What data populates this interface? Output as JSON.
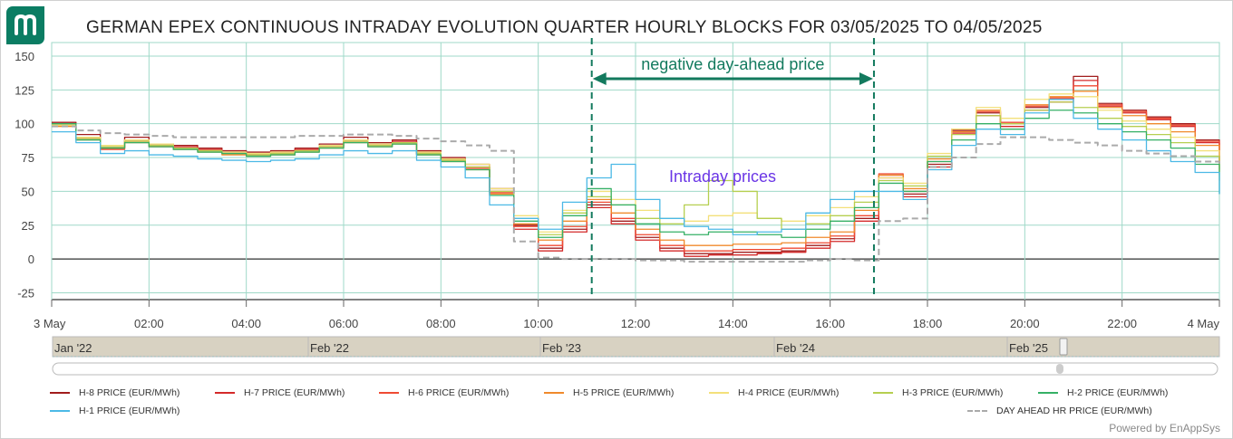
{
  "header": {
    "title": "GERMAN EPEX CONTINUOUS INTRADAY EVOLUTION QUARTER HOURLY BLOCKS FOR 03/05/2025 TO 04/05/2025",
    "logo_name": "enappsys-logo-icon",
    "powered_by": "Powered by EnAppSys"
  },
  "colors": {
    "H-8": "#a11c1c",
    "H-7": "#d42a2a",
    "H-6": "#ef4a33",
    "H-5": "#f08a2c",
    "H-4": "#f3e07a",
    "H-3": "#b6cf50",
    "H-2": "#35b065",
    "H-1": "#4cb9e6",
    "DA": "#aaaaaa",
    "annotation": "#137a5e",
    "annotation_text_purple": "#6a35e6",
    "grid": "#9fd9c8",
    "navigator_fill": "#d8d2c2"
  },
  "annotations": {
    "window_label": "negative day-ahead price",
    "window_start_hour": 11.1,
    "window_end_hour": 16.9,
    "intraday_label": "Intraday prices"
  },
  "navigator": {
    "labels": [
      "Jan '22",
      "Feb '22",
      "Feb '23",
      "Feb '24",
      "Feb '25"
    ]
  },
  "chart_data": {
    "type": "line",
    "title": "GERMAN EPEX CONTINUOUS INTRADAY EVOLUTION QUARTER HOURLY BLOCKS FOR 03/05/2025 TO 04/05/2025",
    "xlabel": "",
    "ylabel": "",
    "x_unit": "hours since 3 May 00:00",
    "xlim": [
      0,
      24
    ],
    "ylim": [
      -30,
      160
    ],
    "x_ticks": [
      {
        "x": 0,
        "label": "3 May"
      },
      {
        "x": 2,
        "label": "02:00"
      },
      {
        "x": 4,
        "label": "04:00"
      },
      {
        "x": 6,
        "label": "06:00"
      },
      {
        "x": 8,
        "label": "08:00"
      },
      {
        "x": 10,
        "label": "10:00"
      },
      {
        "x": 12,
        "label": "12:00"
      },
      {
        "x": 14,
        "label": "14:00"
      },
      {
        "x": 16,
        "label": "16:00"
      },
      {
        "x": 18,
        "label": "18:00"
      },
      {
        "x": 20,
        "label": "20:00"
      },
      {
        "x": 22,
        "label": "22:00"
      },
      {
        "x": 24,
        "label": "4 May"
      }
    ],
    "y_ticks": [
      150,
      125,
      100,
      75,
      50,
      25,
      0,
      -25
    ],
    "legend_position": "bottom",
    "x": [
      0,
      0.5,
      1,
      1.5,
      2,
      2.5,
      3,
      3.5,
      4,
      4.5,
      5,
      5.5,
      6,
      6.5,
      7,
      7.5,
      8,
      8.5,
      9,
      9.5,
      10,
      10.5,
      11,
      11.5,
      12,
      12.5,
      13,
      13.5,
      14,
      14.5,
      15,
      15.5,
      16,
      16.5,
      17,
      17.5,
      18,
      18.5,
      19,
      19.5,
      20,
      20.5,
      21,
      21.5,
      22,
      22.5,
      23,
      23.5,
      24
    ],
    "series": [
      {
        "name": "H-8 PRICE (EUR/MWh)",
        "key": "H-8",
        "values": [
          101,
          92,
          83,
          90,
          85,
          84,
          82,
          80,
          79,
          80,
          82,
          85,
          90,
          86,
          88,
          80,
          75,
          70,
          52,
          25,
          8,
          22,
          40,
          28,
          16,
          8,
          4,
          4,
          5,
          5,
          6,
          10,
          15,
          30,
          62,
          48,
          70,
          95,
          108,
          100,
          112,
          118,
          135,
          115,
          110,
          105,
          100,
          88,
          72
        ]
      },
      {
        "name": "H-7 PRICE (EUR/MWh)",
        "key": "H-7",
        "values": [
          100,
          90,
          82,
          88,
          84,
          83,
          81,
          79,
          78,
          79,
          81,
          84,
          88,
          85,
          87,
          79,
          74,
          68,
          50,
          22,
          6,
          20,
          38,
          26,
          14,
          6,
          2,
          3,
          3,
          4,
          5,
          8,
          13,
          28,
          60,
          46,
          68,
          93,
          106,
          98,
          110,
          116,
          132,
          113,
          108,
          103,
          98,
          86,
          70
        ]
      },
      {
        "name": "H-6 PRICE (EUR/MWh)",
        "key": "H-6",
        "values": [
          99,
          89,
          81,
          87,
          83,
          82,
          80,
          78,
          77,
          78,
          80,
          83,
          87,
          84,
          86,
          78,
          73,
          67,
          49,
          24,
          10,
          24,
          42,
          30,
          18,
          10,
          6,
          6,
          7,
          7,
          8,
          12,
          17,
          32,
          63,
          50,
          72,
          96,
          109,
          101,
          113,
          119,
          128,
          114,
          109,
          104,
          99,
          87,
          71
        ]
      },
      {
        "name": "H-5 PRICE (EUR/MWh)",
        "key": "H-5",
        "values": [
          98,
          88,
          82,
          86,
          84,
          81,
          79,
          77,
          76,
          77,
          79,
          82,
          86,
          83,
          85,
          77,
          72,
          66,
          48,
          26,
          14,
          28,
          44,
          34,
          22,
          14,
          10,
          10,
          11,
          11,
          12,
          16,
          20,
          36,
          62,
          52,
          74,
          94,
          110,
          100,
          114,
          120,
          124,
          112,
          106,
          100,
          94,
          84,
          66
        ]
      },
      {
        "name": "H-4 PRICE (EUR/MWh)",
        "key": "H-4",
        "values": [
          99,
          90,
          84,
          88,
          85,
          82,
          80,
          79,
          78,
          79,
          80,
          84,
          88,
          85,
          86,
          79,
          74,
          70,
          52,
          32,
          20,
          36,
          50,
          44,
          36,
          30,
          28,
          32,
          34,
          30,
          28,
          32,
          38,
          46,
          60,
          56,
          78,
          96,
          112,
          104,
          118,
          122,
          120,
          110,
          102,
          96,
          90,
          80,
          62
        ]
      },
      {
        "name": "H-3 PRICE (EUR/MWh)",
        "key": "H-3",
        "values": [
          100,
          89,
          83,
          87,
          84,
          82,
          80,
          78,
          77,
          78,
          80,
          83,
          87,
          84,
          86,
          78,
          73,
          68,
          50,
          30,
          18,
          34,
          46,
          40,
          30,
          26,
          40,
          58,
          50,
          30,
          22,
          26,
          32,
          42,
          58,
          54,
          76,
          92,
          106,
          100,
          110,
          116,
          112,
          104,
          98,
          92,
          86,
          76,
          58
        ]
      },
      {
        "name": "H-2 PRICE (EUR/MWh)",
        "key": "H-2",
        "values": [
          100,
          88,
          82,
          86,
          83,
          81,
          79,
          78,
          76,
          77,
          79,
          82,
          86,
          83,
          85,
          77,
          72,
          66,
          47,
          28,
          16,
          32,
          52,
          40,
          26,
          20,
          18,
          20,
          20,
          18,
          16,
          22,
          28,
          38,
          56,
          50,
          72,
          88,
          100,
          96,
          104,
          110,
          108,
          100,
          94,
          88,
          82,
          70,
          48
        ]
      },
      {
        "name": "H-1 PRICE (EUR/MWh)",
        "key": "H-1",
        "values": [
          94,
          86,
          78,
          80,
          77,
          76,
          74,
          73,
          72,
          73,
          74,
          77,
          80,
          78,
          80,
          73,
          68,
          60,
          40,
          30,
          22,
          42,
          60,
          70,
          44,
          30,
          24,
          22,
          18,
          20,
          22,
          34,
          44,
          50,
          50,
          44,
          66,
          84,
          96,
          92,
          108,
          118,
          104,
          96,
          88,
          80,
          72,
          64,
          48
        ]
      },
      {
        "name": "DAY AHEAD HR PRICE (EUR/MWh)",
        "key": "DA",
        "dashed": true,
        "values": [
          98,
          95,
          93,
          92,
          91,
          90,
          90,
          90,
          90,
          90,
          91,
          91,
          92,
          92,
          91,
          89,
          87,
          84,
          80,
          13,
          1,
          0,
          0,
          0,
          -1,
          -1,
          -2,
          -2,
          -2,
          -2,
          -2,
          -1,
          0,
          -1,
          28,
          30,
          68,
          75,
          85,
          90,
          90,
          88,
          86,
          84,
          80,
          78,
          76,
          72,
          68
        ]
      }
    ]
  }
}
